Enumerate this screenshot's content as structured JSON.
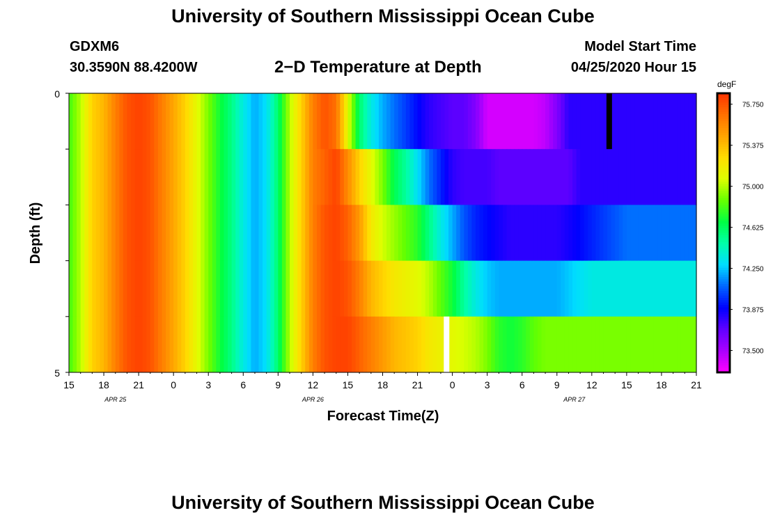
{
  "header": {
    "title": "University of Southern Mississippi Ocean Cube",
    "station_id": "GDXM6",
    "station_coords": "30.3590N 88.4200W",
    "plot_title": "2−D Temperature at Depth",
    "start_label": "Model Start Time",
    "start_value": "04/25/2020 Hour 15"
  },
  "footer": {
    "title": "University of Southern Mississippi Ocean Cube"
  },
  "chart_data": {
    "type": "heatmap",
    "title": "2−D Temperature at Depth",
    "xlabel": "Forecast Time(Z)",
    "ylabel": "Depth (ft)",
    "x_tick_labels": [
      "15",
      "18",
      "21",
      "0",
      "3",
      "6",
      "9",
      "12",
      "15",
      "18",
      "21",
      "0",
      "3",
      "6",
      "9",
      "12",
      "15",
      "18",
      "21"
    ],
    "x_hours_since_start": [
      0,
      3,
      6,
      9,
      12,
      15,
      18,
      21,
      24,
      27,
      30,
      33,
      36,
      39,
      42,
      45,
      48,
      51,
      54
    ],
    "date_labels": [
      {
        "text": "APR 25",
        "hour": 4
      },
      {
        "text": "APR 26",
        "hour": 21
      },
      {
        "text": "APR 27",
        "hour": 43.5
      }
    ],
    "y_tick_labels": [
      "0",
      "5"
    ],
    "ylim": [
      0,
      5
    ],
    "colorbar": {
      "unit": "degF",
      "ticks": [
        "75.750",
        "75.375",
        "75.000",
        "74.625",
        "74.250",
        "73.875",
        "73.500"
      ],
      "tick_values": [
        75.75,
        75.375,
        75.0,
        74.625,
        74.25,
        73.875,
        73.5
      ],
      "range": [
        73.3,
        75.85
      ],
      "colors": [
        "#ff00ff",
        "#aa00ff",
        "#6000ff",
        "#0000ff",
        "#0066ff",
        "#00ddff",
        "#00ffaa",
        "#00ff44",
        "#66ff00",
        "#ddff00",
        "#ffdd00",
        "#ffa500",
        "#ff7000",
        "#ff3300"
      ]
    },
    "depth_layers": [
      0,
      1,
      2,
      3,
      4,
      5
    ],
    "times": [
      0,
      1,
      2,
      3,
      4,
      5,
      6,
      7,
      8,
      9,
      10,
      11,
      12,
      13,
      14,
      15,
      16,
      17,
      18,
      19,
      20,
      21,
      22,
      23,
      24,
      25,
      26,
      27,
      28,
      29,
      30,
      31,
      32,
      33,
      34,
      35,
      36,
      37,
      38,
      39,
      40,
      41,
      42,
      43,
      44,
      45,
      46,
      47,
      48,
      49,
      50,
      51,
      52,
      53,
      54
    ],
    "temperature": [
      [
        74.8,
        75.0,
        75.3,
        75.4,
        75.6,
        75.75,
        75.8,
        75.75,
        75.6,
        75.45,
        75.3,
        75.1,
        74.9,
        74.7,
        74.55,
        74.35,
        74.2,
        74.3,
        74.6,
        75.0,
        75.3,
        75.6,
        75.75,
        75.65,
        75.1,
        74.6,
        74.35,
        74.2,
        74.1,
        74.0,
        73.9,
        73.8,
        73.75,
        73.7,
        73.7,
        73.6,
        73.4,
        73.4,
        73.4,
        73.4,
        73.4,
        73.45,
        73.6,
        73.8,
        73.8,
        73.8,
        73.8,
        73.8,
        73.8,
        73.8,
        73.8,
        73.8,
        73.8,
        73.8,
        73.8
      ],
      [
        74.8,
        75.0,
        75.3,
        75.4,
        75.6,
        75.75,
        75.8,
        75.75,
        75.6,
        75.45,
        75.3,
        75.1,
        74.9,
        74.7,
        74.55,
        74.35,
        74.2,
        74.3,
        74.6,
        75.0,
        75.3,
        75.6,
        75.7,
        75.8,
        75.55,
        75.3,
        75.1,
        74.9,
        74.65,
        74.5,
        74.3,
        74.1,
        73.95,
        73.8,
        73.75,
        73.75,
        73.75,
        73.7,
        73.7,
        73.7,
        73.7,
        73.7,
        73.7,
        73.7,
        73.8,
        73.8,
        73.8,
        73.8,
        73.8,
        73.8,
        73.8,
        73.8,
        73.8,
        73.8,
        73.8
      ],
      [
        74.8,
        75.0,
        75.3,
        75.4,
        75.6,
        75.75,
        75.8,
        75.75,
        75.6,
        75.45,
        75.3,
        75.1,
        74.9,
        74.7,
        74.55,
        74.35,
        74.2,
        74.3,
        74.6,
        75.0,
        75.3,
        75.6,
        75.75,
        75.8,
        75.7,
        75.5,
        75.2,
        75.05,
        74.95,
        74.85,
        74.75,
        74.55,
        74.35,
        74.2,
        74.05,
        73.95,
        73.9,
        73.85,
        73.8,
        73.8,
        73.8,
        73.8,
        73.8,
        73.85,
        73.9,
        73.95,
        74.0,
        74.05,
        74.1,
        74.1,
        74.1,
        74.1,
        74.1,
        74.1,
        74.1
      ],
      [
        74.8,
        75.0,
        75.3,
        75.4,
        75.6,
        75.75,
        75.8,
        75.75,
        75.6,
        75.45,
        75.3,
        75.1,
        74.9,
        74.7,
        74.55,
        74.35,
        74.2,
        74.3,
        74.6,
        75.0,
        75.3,
        75.6,
        75.75,
        75.8,
        75.75,
        75.6,
        75.4,
        75.3,
        75.2,
        75.15,
        75.1,
        75.0,
        74.85,
        74.7,
        74.5,
        74.35,
        74.25,
        74.2,
        74.2,
        74.2,
        74.2,
        74.2,
        74.2,
        74.25,
        74.3,
        74.35,
        74.35,
        74.35,
        74.35,
        74.35,
        74.35,
        74.35,
        74.35,
        74.35,
        74.35
      ],
      [
        74.8,
        75.0,
        75.3,
        75.4,
        75.6,
        75.75,
        75.8,
        75.75,
        75.6,
        75.45,
        75.3,
        75.1,
        74.9,
        74.7,
        74.55,
        74.35,
        74.2,
        74.3,
        74.6,
        75.0,
        75.3,
        75.6,
        75.75,
        75.8,
        75.8,
        75.7,
        75.6,
        75.5,
        75.4,
        75.35,
        75.3,
        75.2,
        75.15,
        75.1,
        75.05,
        75.0,
        74.9,
        74.75,
        74.7,
        74.75,
        74.85,
        74.9,
        74.9,
        74.9,
        74.9,
        74.9,
        74.9,
        74.9,
        74.9,
        74.9,
        74.9,
        74.9,
        74.9,
        74.9,
        74.9
      ]
    ],
    "markers": [
      {
        "hour": 46.5,
        "layer": 0,
        "color": "#000000"
      },
      {
        "hour": 32.5,
        "layer": 4,
        "color": "#ffffff"
      }
    ]
  }
}
